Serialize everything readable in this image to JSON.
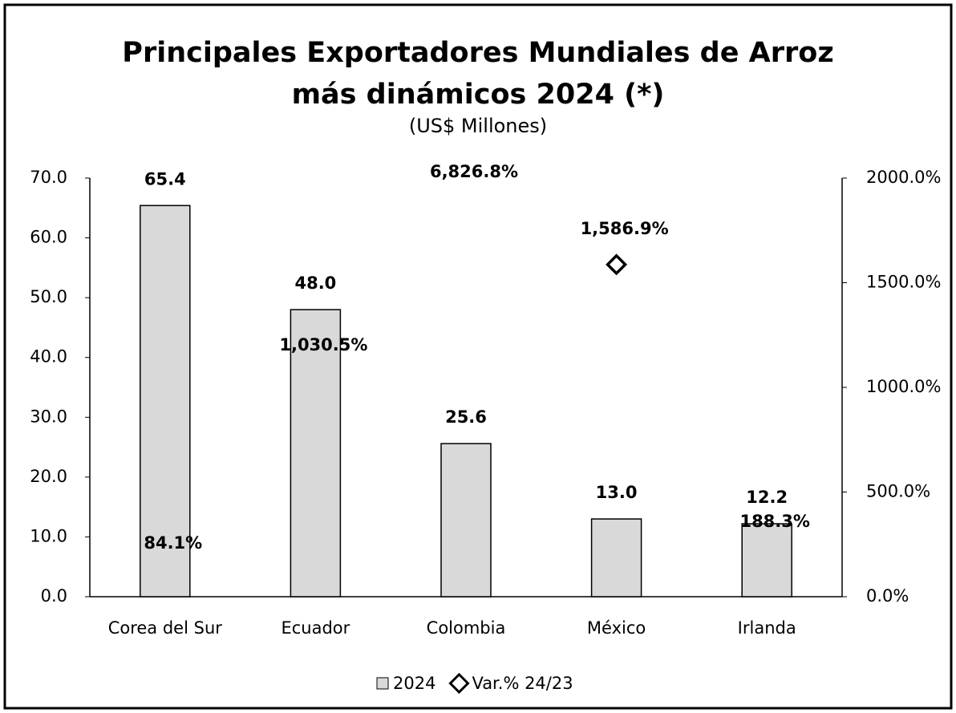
{
  "chart_data": {
    "type": "bar",
    "title": "Principales Exportadores Mundiales de Arroz más dinámicos 2024 (*)",
    "subtitle": "(US$ Millones)",
    "categories": [
      "Corea del Sur",
      "Ecuador",
      "Colombia",
      "México",
      "Irlanda"
    ],
    "series": [
      {
        "name": "2024",
        "type": "bar",
        "color": "#d9d9d9",
        "values": [
          65.4,
          48.0,
          25.6,
          13.0,
          12.2
        ],
        "value_labels": [
          "65.4",
          "48.0",
          "25.6",
          "13.0",
          "12.2"
        ]
      },
      {
        "name": "Var.% 24/23",
        "type": "scatter",
        "axis": "y2",
        "color": "#ffffff",
        "values": [
          84.1,
          1030.5,
          6826.8,
          1586.9,
          188.3
        ],
        "value_labels": [
          "84.1%",
          "1,030.5%",
          "6,826.8%",
          "1,586.9%",
          "188.3%"
        ]
      }
    ],
    "ylim": [
      0,
      70
    ],
    "yticks": [
      {
        "value": 0,
        "label": "0.0"
      },
      {
        "value": 10,
        "label": "10.0"
      },
      {
        "value": 20,
        "label": "20.0"
      },
      {
        "value": 30,
        "label": "30.0"
      },
      {
        "value": 40,
        "label": "40.0"
      },
      {
        "value": 50,
        "label": "50.0"
      },
      {
        "value": 60,
        "label": "60.0"
      },
      {
        "value": 70,
        "label": "70.0"
      }
    ],
    "y2lim": [
      0,
      2000
    ],
    "y2ticks": [
      {
        "value": 0,
        "label": "0.0%"
      },
      {
        "value": 500,
        "label": "500.0%"
      },
      {
        "value": 1000,
        "label": "1000.0%"
      },
      {
        "value": 1500,
        "label": "1500.0%"
      },
      {
        "value": 2000,
        "label": "2000.0%"
      }
    ],
    "grid": false,
    "legend": "bottom"
  }
}
